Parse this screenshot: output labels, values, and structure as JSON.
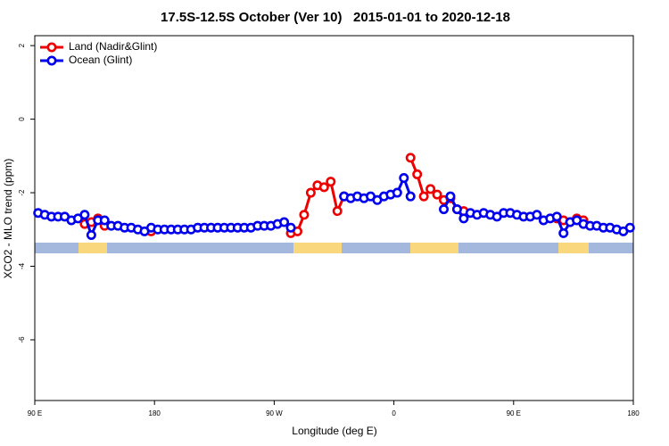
{
  "chart_data": {
    "type": "line",
    "title": "17.5S-12.5S October (Ver 10)   2015-01-01 to 2020-12-18",
    "xlabel": "Longitude (deg E)",
    "ylabel": "XCO2 - MLO trend (ppm)",
    "x": [
      92.5,
      97.5,
      102.5,
      107.5,
      112.5,
      117.5,
      122.5,
      127.5,
      132.5,
      137.5,
      142.5,
      147.5,
      152.5,
      157.5,
      162.5,
      167.5,
      172.5,
      177.5,
      182.5,
      187.5,
      192.5,
      197.5,
      202.5,
      207.5,
      212.5,
      217.5,
      222.5,
      227.5,
      232.5,
      237.5,
      242.5,
      247.5,
      252.5,
      257.5,
      262.5,
      267.5,
      272.5,
      277.5,
      282.5,
      287.5,
      292.5,
      297.5,
      302.5,
      307.5,
      312.5,
      317.5,
      322.5,
      327.5,
      332.5,
      337.5,
      342.5,
      347.5,
      352.5,
      357.5,
      362.5,
      367.5,
      372.5,
      377.5,
      382.5,
      387.5,
      392.5,
      397.5,
      402.5,
      407.5,
      412.5,
      417.5,
      422.5,
      427.5,
      432.5,
      437.5,
      442.5,
      447.5,
      452.5,
      457.5,
      462.5,
      467.5,
      472.5,
      477.5,
      482.5,
      487.5,
      492.5,
      497.5,
      502.5,
      507.5,
      512.5,
      517.5,
      522.5,
      527.5,
      532.5,
      537.5
    ],
    "series": [
      {
        "name": "Land (Nadir&Glint)",
        "color": "#ee0000",
        "values": [
          null,
          null,
          null,
          null,
          null,
          null,
          null,
          -2.85,
          -2.8,
          -2.7,
          -2.9,
          null,
          null,
          null,
          null,
          null,
          null,
          -3.05,
          null,
          null,
          null,
          null,
          null,
          null,
          null,
          null,
          null,
          null,
          null,
          null,
          null,
          null,
          null,
          null,
          null,
          null,
          null,
          null,
          -3.1,
          -3.05,
          -2.6,
          -2.0,
          -1.8,
          -1.85,
          -1.7,
          -2.5,
          -2.1,
          null,
          null,
          null,
          null,
          null,
          null,
          null,
          null,
          null,
          -1.05,
          -1.5,
          -2.1,
          -1.9,
          -2.05,
          -2.2,
          -2.15,
          -2.45,
          -2.5,
          null,
          null,
          null,
          null,
          null,
          null,
          null,
          null,
          null,
          null,
          null,
          null,
          null,
          -2.7,
          -2.75,
          -2.8,
          -2.7,
          -2.75,
          null,
          null,
          null,
          null,
          null,
          null,
          null
        ]
      },
      {
        "name": "Ocean (Glint)",
        "color": "#0000ee",
        "values": [
          -2.55,
          -2.6,
          -2.65,
          -2.65,
          -2.65,
          -2.75,
          -2.7,
          -2.6,
          -3.15,
          -2.75,
          -2.75,
          -2.9,
          -2.9,
          -2.95,
          -2.95,
          -3.0,
          -3.05,
          -2.95,
          -3.0,
          -3.0,
          -3.0,
          -3.0,
          -3.0,
          -3.0,
          -2.95,
          -2.95,
          -2.95,
          -2.95,
          -2.95,
          -2.95,
          -2.95,
          -2.95,
          -2.95,
          -2.9,
          -2.9,
          -2.9,
          -2.85,
          -2.8,
          -2.95,
          null,
          null,
          null,
          null,
          null,
          null,
          null,
          -2.1,
          -2.15,
          -2.1,
          -2.15,
          -2.1,
          -2.2,
          -2.1,
          -2.05,
          -2.0,
          -1.6,
          -2.1,
          null,
          null,
          null,
          null,
          -2.45,
          -2.1,
          -2.45,
          -2.7,
          -2.55,
          -2.6,
          -2.55,
          -2.6,
          -2.65,
          -2.55,
          -2.55,
          -2.6,
          -2.65,
          -2.65,
          -2.6,
          -2.75,
          -2.7,
          -2.65,
          -3.1,
          -2.8,
          -2.75,
          -2.85,
          -2.9,
          -2.9,
          -2.95,
          -2.95,
          -3.0,
          -3.05,
          -2.95
        ]
      }
    ],
    "xlim": [
      90,
      540
    ],
    "xticks": [
      {
        "value": 90,
        "label": "90 E"
      },
      180,
      {
        "value": 270,
        "label": "90 W"
      },
      {
        "value": 360,
        "label": "0"
      },
      {
        "value": 450,
        "label": "90 E"
      },
      {
        "value": 540,
        "label": "180"
      }
    ],
    "ylim": [
      -7.65,
      2.27
    ],
    "yticks": [
      2,
      0,
      -2,
      -4,
      -6
    ],
    "legend": "topleft"
  }
}
